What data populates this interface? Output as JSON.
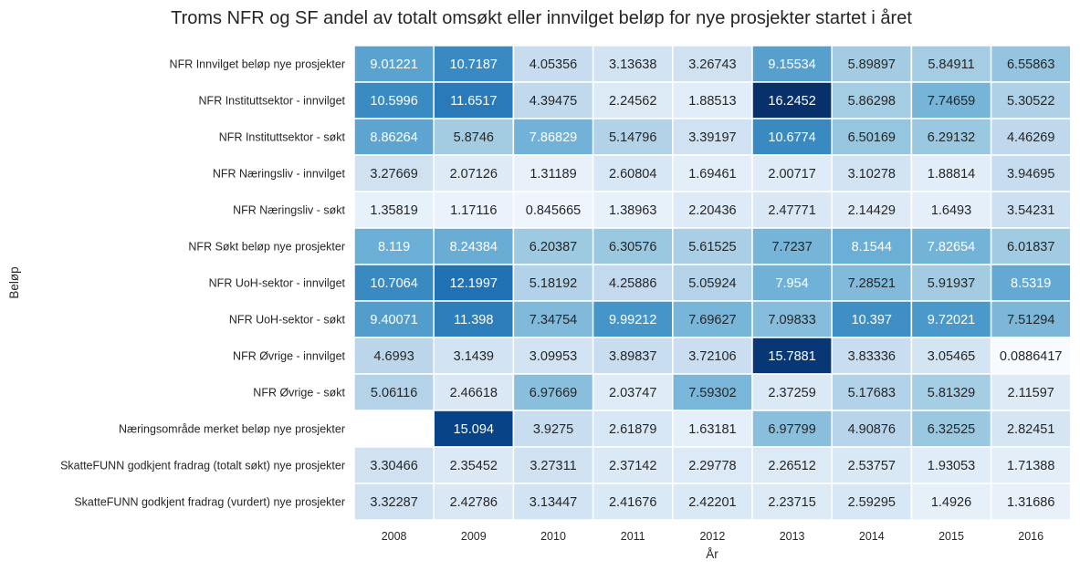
{
  "chart_data": {
    "type": "heatmap",
    "title": "Troms NFR og SF andel av totalt omsøkt eller innvilget beløp for nye prosjekter startet i året",
    "xlabel": "År",
    "ylabel": "Beløp",
    "colormap": "Blues",
    "vmin": 0.0886417,
    "vmax": 16.2452,
    "columns": [
      "2008",
      "2009",
      "2010",
      "2011",
      "2012",
      "2013",
      "2014",
      "2015",
      "2016"
    ],
    "rows": [
      "NFR Innvilget beløp nye prosjekter",
      "NFR Instituttsektor - innvilget",
      "NFR Instituttsektor - søkt",
      "NFR Næringsliv - innvilget",
      "NFR Næringsliv - søkt",
      "NFR Søkt beløp nye prosjekter",
      "NFR UoH-sektor - innvilget",
      "NFR UoH-sektor - søkt",
      "NFR Øvrige - innvilget",
      "NFR Øvrige - søkt",
      "Næringsområde merket beløp nye prosjekter",
      "SkatteFUNN godkjent fradrag (totalt søkt) nye prosjekter",
      "SkatteFUNN godkjent fradrag (vurdert) nye prosjekter"
    ],
    "values": [
      [
        "9.01221",
        "10.7187",
        "4.05356",
        "3.13638",
        "3.26743",
        "9.15534",
        "5.89897",
        "5.84911",
        "6.55863"
      ],
      [
        "10.5996",
        "11.6517",
        "4.39475",
        "2.24562",
        "1.88513",
        "16.2452",
        "5.86298",
        "7.74659",
        "5.30522"
      ],
      [
        "8.86264",
        "5.8746",
        "7.86829",
        "5.14796",
        "3.39197",
        "10.6774",
        "6.50169",
        "6.29132",
        "4.46269"
      ],
      [
        "3.27669",
        "2.07126",
        "1.31189",
        "2.60804",
        "1.69461",
        "2.00717",
        "3.10278",
        "1.88814",
        "3.94695"
      ],
      [
        "1.35819",
        "1.17116",
        "0.845665",
        "1.38963",
        "2.20436",
        "2.47771",
        "2.14429",
        "1.6493",
        "3.54231"
      ],
      [
        "8.119",
        "8.24384",
        "6.20387",
        "6.30576",
        "5.61525",
        "7.7237",
        "8.1544",
        "7.82654",
        "6.01837"
      ],
      [
        "10.7064",
        "12.1997",
        "5.18192",
        "4.25886",
        "5.05924",
        "7.954",
        "7.28521",
        "5.91937",
        "8.5319"
      ],
      [
        "9.40071",
        "11.398",
        "7.34754",
        "9.99212",
        "7.69627",
        "7.09833",
        "10.397",
        "9.72021",
        "7.51294"
      ],
      [
        "4.6993",
        "3.1439",
        "3.09953",
        "3.89837",
        "3.72106",
        "15.7881",
        "3.83336",
        "3.05465",
        "0.0886417"
      ],
      [
        "5.06116",
        "2.46618",
        "6.97669",
        "2.03747",
        "7.59302",
        "2.37259",
        "5.17683",
        "5.81329",
        "2.11597"
      ],
      [
        null,
        "15.094",
        "3.9275",
        "2.61879",
        "1.63181",
        "6.97799",
        "4.90876",
        "6.32525",
        "2.82451"
      ],
      [
        "3.30466",
        "2.35452",
        "3.27311",
        "2.37142",
        "2.29778",
        "2.26512",
        "2.53757",
        "1.93053",
        "1.71388"
      ],
      [
        "3.32287",
        "2.42786",
        "3.13447",
        "2.41676",
        "2.42201",
        "2.23715",
        "2.59295",
        "1.4926",
        "1.31686"
      ]
    ]
  }
}
